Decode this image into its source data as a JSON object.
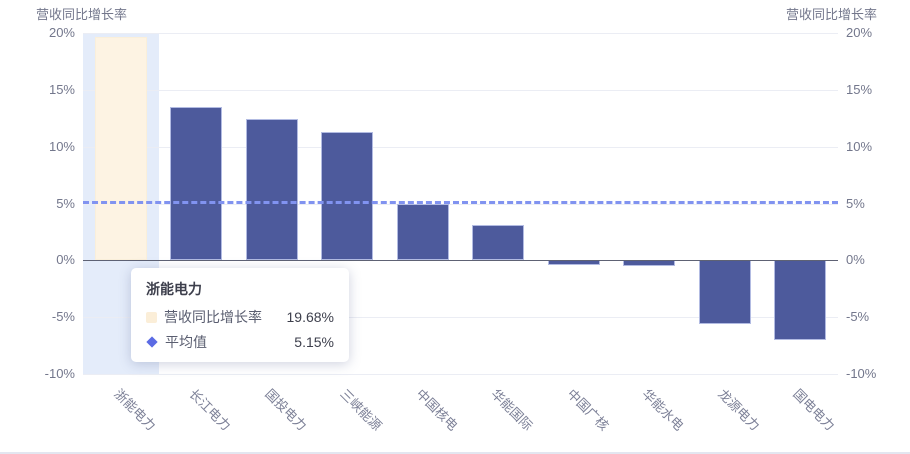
{
  "colors": {
    "bar": "#4d5a9c",
    "bar_highlight": "#fdf3e3",
    "band_highlight": "#e4ecfa",
    "avg_line": "#8193f0",
    "grid": "#ebedf4",
    "zero_line": "#5e6274",
    "axis_text": "#73778c",
    "category_text": "#7b7f96"
  },
  "chart_data": {
    "type": "bar",
    "title_left": "营收同比增长率",
    "title_right": "营收同比增长率",
    "categories": [
      "浙能电力",
      "长江电力",
      "国投电力",
      "三峡能源",
      "中国核电",
      "华能国际",
      "中国广核",
      "华能水电",
      "龙源电力",
      "国电电力"
    ],
    "series": [
      {
        "name": "营收同比增长率",
        "type": "bar",
        "values": [
          19.68,
          13.5,
          12.4,
          11.3,
          5.0,
          3.1,
          -0.4,
          -0.5,
          -5.6,
          -7.0
        ]
      },
      {
        "name": "平均值",
        "type": "line",
        "value": 5.15
      }
    ],
    "highlighted_index": 0,
    "yticks": [
      20,
      15,
      10,
      5,
      0,
      -5,
      -10
    ],
    "ylim": [
      -10,
      20
    ],
    "tick_suffix": "%",
    "grid": true,
    "legend_position": "none"
  },
  "tooltip": {
    "title": "浙能电力",
    "rows": [
      {
        "icon": "square-cream-icon",
        "label": "营收同比增长率",
        "value": "19.68%"
      },
      {
        "icon": "diamond-blue-icon",
        "label": "平均值",
        "value": "5.15%"
      }
    ]
  }
}
